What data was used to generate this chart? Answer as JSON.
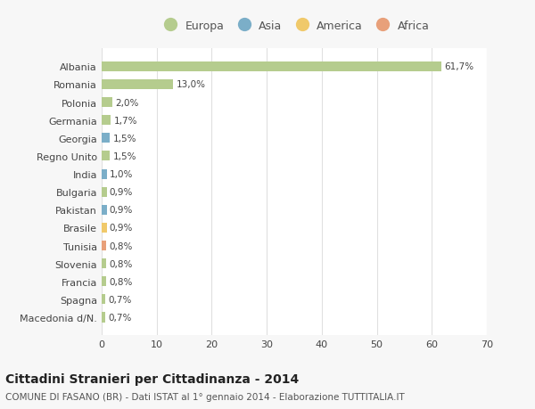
{
  "countries": [
    "Albania",
    "Romania",
    "Polonia",
    "Germania",
    "Georgia",
    "Regno Unito",
    "India",
    "Bulgaria",
    "Pakistan",
    "Brasile",
    "Tunisia",
    "Slovenia",
    "Francia",
    "Spagna",
    "Macedonia d/N."
  ],
  "values": [
    61.7,
    13.0,
    2.0,
    1.7,
    1.5,
    1.5,
    1.0,
    0.9,
    0.9,
    0.9,
    0.8,
    0.8,
    0.8,
    0.7,
    0.7
  ],
  "labels": [
    "61,7%",
    "13,0%",
    "2,0%",
    "1,7%",
    "1,5%",
    "1,5%",
    "1,0%",
    "0,9%",
    "0,9%",
    "0,9%",
    "0,8%",
    "0,8%",
    "0,8%",
    "0,7%",
    "0,7%"
  ],
  "continents": [
    "Europa",
    "Europa",
    "Europa",
    "Europa",
    "Asia",
    "Europa",
    "Asia",
    "Europa",
    "Asia",
    "America",
    "Africa",
    "Europa",
    "Europa",
    "Europa",
    "Europa"
  ],
  "continent_colors": {
    "Europa": "#b5cc8e",
    "Asia": "#7baec8",
    "America": "#f0c96a",
    "Africa": "#e8a07a"
  },
  "legend_items": [
    "Europa",
    "Asia",
    "America",
    "Africa"
  ],
  "legend_colors": [
    "#b5cc8e",
    "#7baec8",
    "#f0c96a",
    "#e8a07a"
  ],
  "title": "Cittadini Stranieri per Cittadinanza - 2014",
  "subtitle": "COMUNE DI FASANO (BR) - Dati ISTAT al 1° gennaio 2014 - Elaborazione TUTTITALIA.IT",
  "xlim": [
    0,
    70
  ],
  "xticks": [
    0,
    10,
    20,
    30,
    40,
    50,
    60,
    70
  ],
  "background_color": "#f7f7f7",
  "bar_background": "#ffffff",
  "grid_color": "#e0e0e0",
  "text_color": "#555555",
  "label_color": "#444444"
}
